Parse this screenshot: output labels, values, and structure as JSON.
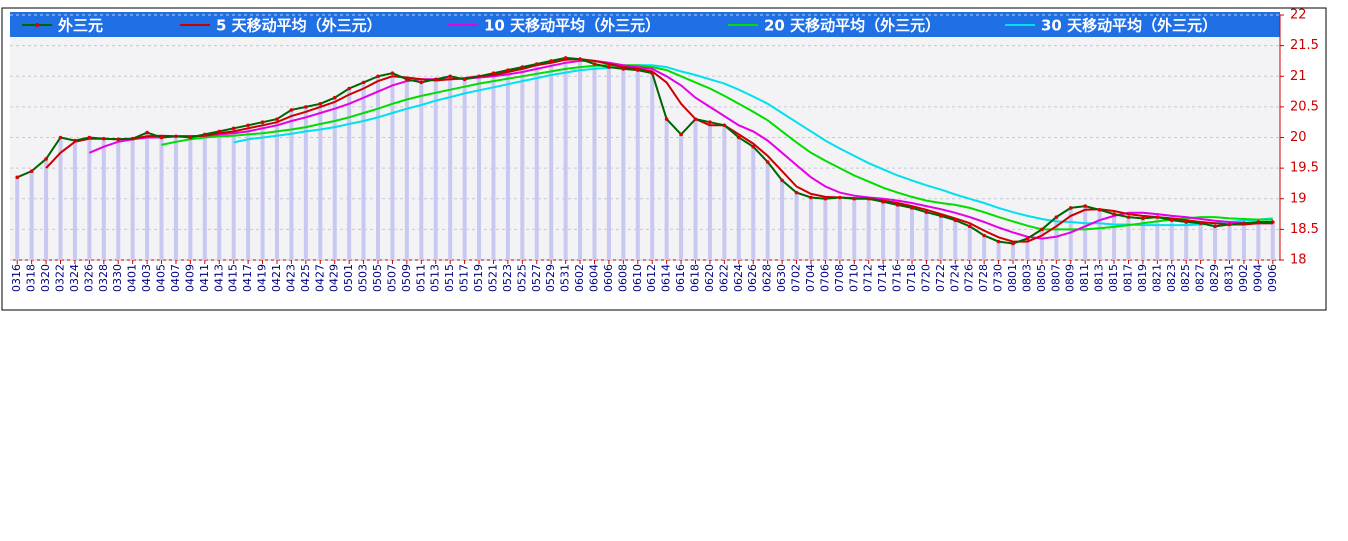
{
  "chart_data": {
    "type": "line",
    "categories": [
      "0316",
      "0318",
      "0320",
      "0322",
      "0324",
      "0326",
      "0328",
      "0330",
      "0401",
      "0403",
      "0405",
      "0407",
      "0409",
      "0411",
      "0413",
      "0415",
      "0417",
      "0419",
      "0421",
      "0423",
      "0425",
      "0427",
      "0429",
      "0501",
      "0503",
      "0505",
      "0507",
      "0509",
      "0511",
      "0513",
      "0515",
      "0517",
      "0519",
      "0521",
      "0523",
      "0525",
      "0527",
      "0529",
      "0531",
      "0602",
      "0604",
      "0606",
      "0608",
      "0610",
      "0612",
      "0614",
      "0616",
      "0618",
      "0620",
      "0622",
      "0624",
      "0626",
      "0628",
      "0630",
      "0702",
      "0704",
      "0706",
      "0708",
      "0710",
      "0712",
      "0714",
      "0716",
      "0718",
      "0720",
      "0722",
      "0724",
      "0726",
      "0728",
      "0730",
      "0801",
      "0803",
      "0805",
      "0807",
      "0809",
      "0811",
      "0813",
      "0815",
      "0817",
      "0819",
      "0821",
      "0823",
      "0825",
      "0827",
      "0829",
      "0831",
      "0902",
      "0904",
      "0906"
    ],
    "series": [
      {
        "name": "外三元",
        "color": "#006400",
        "marker_color": "#dd0000",
        "values": [
          19.35,
          19.45,
          19.65,
          20.0,
          19.95,
          20.0,
          19.98,
          19.97,
          19.98,
          20.08,
          20.0,
          20.02,
          20.0,
          20.05,
          20.1,
          20.15,
          20.2,
          20.25,
          20.3,
          20.45,
          20.5,
          20.55,
          20.65,
          20.8,
          20.9,
          21.0,
          21.05,
          20.95,
          20.9,
          20.95,
          21.0,
          20.95,
          21.0,
          21.05,
          21.1,
          21.15,
          21.2,
          21.25,
          21.3,
          21.28,
          21.2,
          21.15,
          21.12,
          21.1,
          21.05,
          20.3,
          20.05,
          20.3,
          20.25,
          20.2,
          20.0,
          19.85,
          19.6,
          19.3,
          19.1,
          19.02,
          19.0,
          19.02,
          19.0,
          19.0,
          18.95,
          18.9,
          18.85,
          18.78,
          18.72,
          18.65,
          18.55,
          18.4,
          18.3,
          18.27,
          18.35,
          18.5,
          18.7,
          18.85,
          18.88,
          18.82,
          18.75,
          18.7,
          18.68,
          18.7,
          18.65,
          18.62,
          18.6,
          18.55,
          18.58,
          18.6,
          18.62,
          18.62
        ]
      },
      {
        "name": "5 天移动平均（外三元）",
        "color": "#cc0000",
        "values": [
          null,
          null,
          19.5,
          19.75,
          19.93,
          19.98,
          19.98,
          19.97,
          19.98,
          20.02,
          20.03,
          20.02,
          20.02,
          20.03,
          20.07,
          20.1,
          20.15,
          20.2,
          20.25,
          20.35,
          20.42,
          20.5,
          20.58,
          20.7,
          20.8,
          20.92,
          21.0,
          20.98,
          20.95,
          20.93,
          20.95,
          20.97,
          21.0,
          21.02,
          21.07,
          21.12,
          21.18,
          21.22,
          21.27,
          21.28,
          21.25,
          21.2,
          21.15,
          21.12,
          21.08,
          20.9,
          20.55,
          20.3,
          20.2,
          20.2,
          20.05,
          19.9,
          19.7,
          19.45,
          19.2,
          19.08,
          19.03,
          19.02,
          19.01,
          19.0,
          18.97,
          18.93,
          18.88,
          18.82,
          18.75,
          18.68,
          18.6,
          18.48,
          18.37,
          18.3,
          18.3,
          18.4,
          18.55,
          18.72,
          18.82,
          18.83,
          18.8,
          18.75,
          18.72,
          18.7,
          18.68,
          18.65,
          18.62,
          18.6,
          18.58,
          18.58,
          18.6,
          18.6
        ]
      },
      {
        "name": "10 天移动平均（外三元）",
        "color": "#e600e6",
        "values": [
          null,
          null,
          null,
          null,
          null,
          19.75,
          19.85,
          19.93,
          19.97,
          20.0,
          20.0,
          20.02,
          20.02,
          20.03,
          20.05,
          20.07,
          20.1,
          20.15,
          20.2,
          20.27,
          20.33,
          20.4,
          20.47,
          20.55,
          20.65,
          20.75,
          20.85,
          20.92,
          20.95,
          20.95,
          20.95,
          20.96,
          20.98,
          21.0,
          21.03,
          21.07,
          21.12,
          21.17,
          21.22,
          21.25,
          21.25,
          21.22,
          21.18,
          21.15,
          21.12,
          21.0,
          20.85,
          20.65,
          20.5,
          20.35,
          20.2,
          20.1,
          19.95,
          19.75,
          19.55,
          19.35,
          19.2,
          19.1,
          19.05,
          19.02,
          19.0,
          18.97,
          18.93,
          18.88,
          18.83,
          18.77,
          18.7,
          18.62,
          18.53,
          18.45,
          18.38,
          18.35,
          18.38,
          18.45,
          18.55,
          18.65,
          18.72,
          18.77,
          18.77,
          18.75,
          18.72,
          18.7,
          18.67,
          18.64,
          18.62,
          18.6,
          18.6,
          18.6
        ]
      },
      {
        "name": "20 天移动平均（外三元）",
        "color": "#00dd00",
        "values": [
          null,
          null,
          null,
          null,
          null,
          null,
          null,
          null,
          null,
          null,
          19.88,
          19.93,
          19.97,
          20.0,
          20.02,
          20.03,
          20.05,
          20.07,
          20.1,
          20.13,
          20.17,
          20.22,
          20.27,
          20.33,
          20.4,
          20.47,
          20.55,
          20.62,
          20.68,
          20.73,
          20.78,
          20.83,
          20.88,
          20.92,
          20.96,
          21.0,
          21.04,
          21.08,
          21.12,
          21.15,
          21.17,
          21.18,
          21.18,
          21.18,
          21.15,
          21.1,
          21.0,
          20.9,
          20.8,
          20.68,
          20.55,
          20.42,
          20.28,
          20.1,
          19.92,
          19.75,
          19.62,
          19.5,
          19.38,
          19.28,
          19.18,
          19.1,
          19.03,
          18.97,
          18.93,
          18.9,
          18.85,
          18.78,
          18.7,
          18.63,
          18.56,
          18.5,
          18.5,
          18.5,
          18.5,
          18.52,
          18.54,
          18.57,
          18.6,
          18.63,
          18.66,
          18.68,
          18.7,
          18.7,
          18.68,
          18.67,
          18.66,
          18.66
        ]
      },
      {
        "name": "30 天移动平均（外三元）",
        "color": "#00e0ee",
        "values": [
          null,
          null,
          null,
          null,
          null,
          null,
          null,
          null,
          null,
          null,
          null,
          null,
          null,
          null,
          null,
          19.92,
          19.97,
          20.0,
          20.03,
          20.06,
          20.1,
          20.13,
          20.17,
          20.22,
          20.27,
          20.33,
          20.4,
          20.47,
          20.53,
          20.6,
          20.66,
          20.72,
          20.77,
          20.82,
          20.87,
          20.92,
          20.97,
          21.02,
          21.06,
          21.1,
          21.12,
          21.14,
          21.16,
          21.18,
          21.18,
          21.15,
          21.08,
          21.02,
          20.95,
          20.88,
          20.78,
          20.67,
          20.55,
          20.4,
          20.25,
          20.1,
          19.95,
          19.82,
          19.7,
          19.58,
          19.48,
          19.38,
          19.3,
          19.22,
          19.15,
          19.07,
          19.0,
          18.93,
          18.85,
          18.78,
          18.72,
          18.67,
          18.63,
          18.62,
          18.6,
          18.6,
          18.58,
          18.58,
          18.57,
          18.57,
          18.57,
          18.57,
          18.58,
          18.6,
          18.62,
          18.64,
          18.66,
          18.68
        ]
      }
    ],
    "ylim": [
      18,
      22
    ],
    "yticks": [
      18,
      18.5,
      19,
      19.5,
      20,
      20.5,
      21,
      21.5,
      22
    ],
    "y_axis_side": "right",
    "grid": true,
    "legend_position": "top",
    "bar_color": "#c8c8f2"
  }
}
